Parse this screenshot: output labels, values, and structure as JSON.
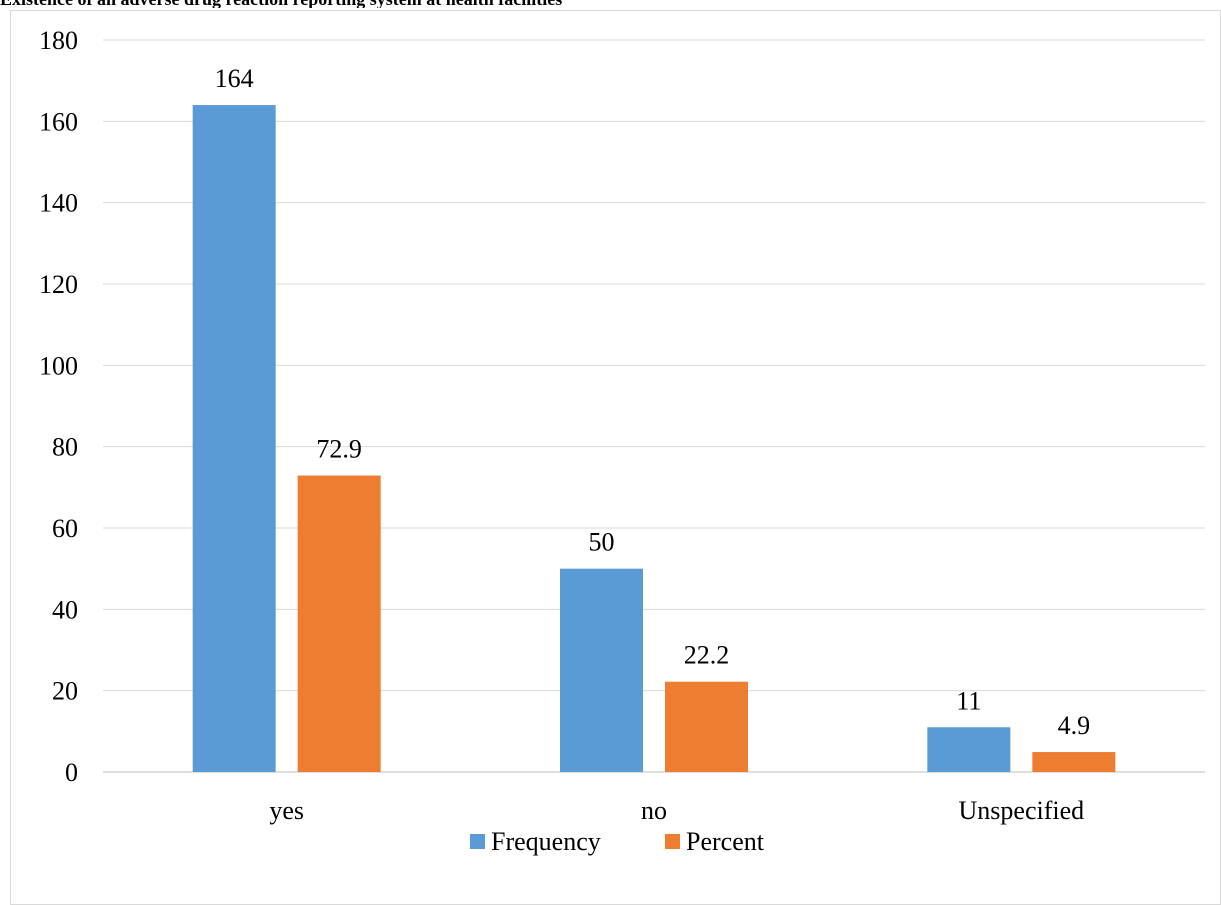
{
  "chart_data": {
    "type": "bar",
    "title": "Existence of an adverse drug reaction reporting system at health facilities",
    "categories": [
      "yes",
      "no",
      "Unspecified"
    ],
    "series": [
      {
        "name": "Frequency",
        "values": [
          164,
          50,
          11
        ],
        "labels": [
          "164",
          "50",
          "11"
        ],
        "color": "#5b9bd5"
      },
      {
        "name": "Percent",
        "values": [
          72.9,
          22.2,
          4.9
        ],
        "labels": [
          "72.9",
          "22.2",
          "4.9"
        ],
        "color": "#ed7d31"
      }
    ],
    "ylim": [
      0,
      180
    ],
    "yticks": [
      "0",
      "20",
      "40",
      "60",
      "80",
      "100",
      "120",
      "140",
      "160",
      "180"
    ],
    "grid": true,
    "legend": "bottom"
  }
}
